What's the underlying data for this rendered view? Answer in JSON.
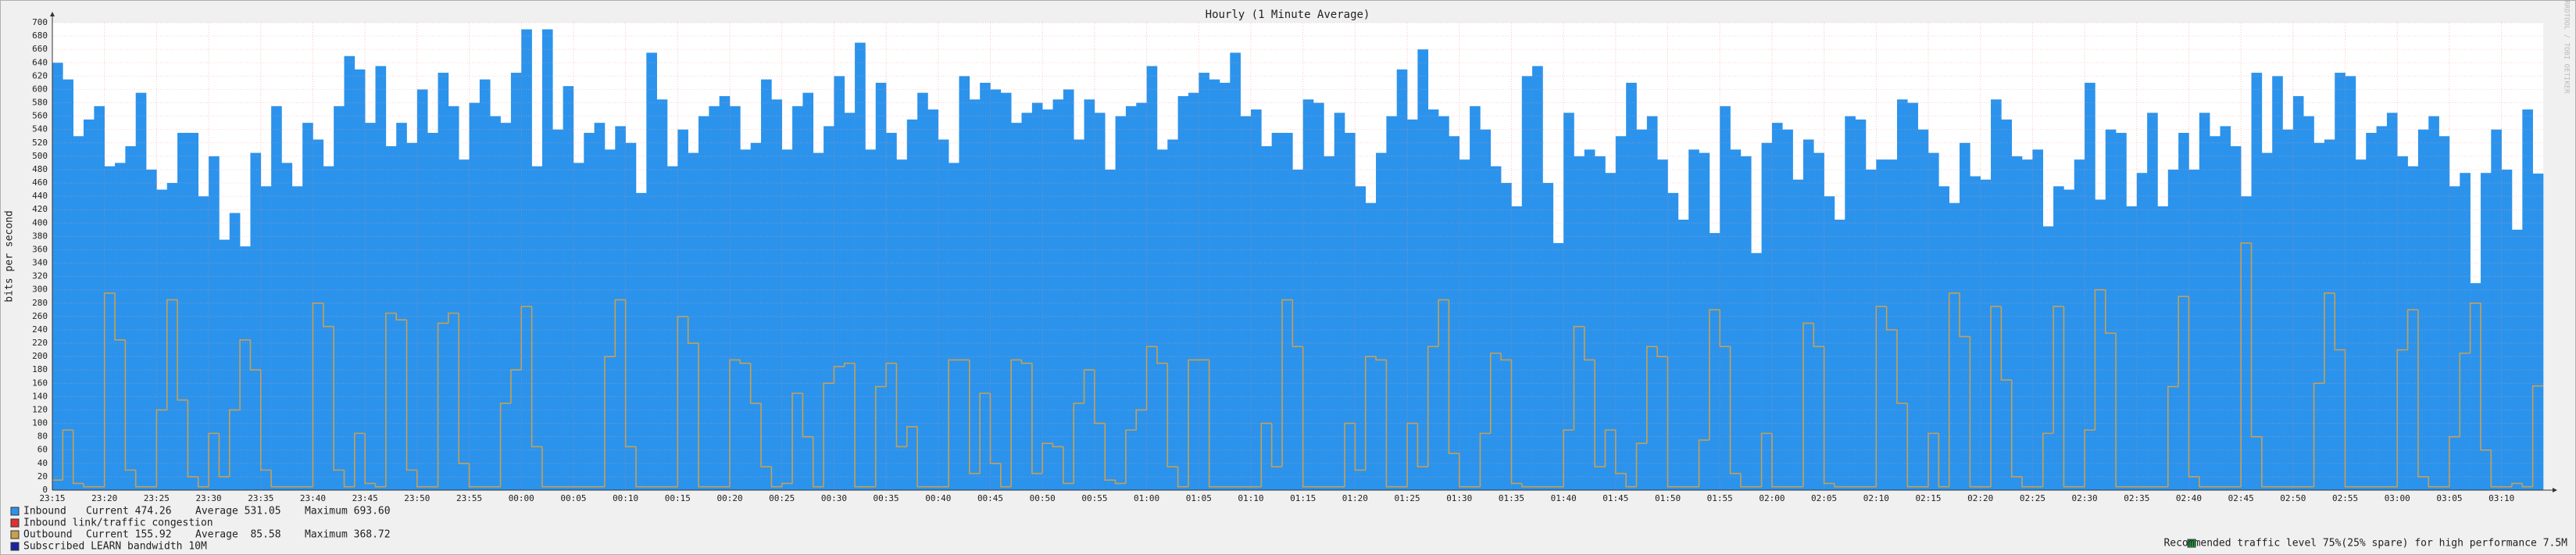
{
  "chart_data": {
    "type": "bar",
    "title": "Hourly (1 Minute Average)",
    "y_label": "bits per second",
    "watermark": "RRDTOOL / TOBI OETIKER",
    "categories": [
      "23:15",
      null,
      null,
      null,
      null,
      "23:20",
      null,
      null,
      null,
      null,
      "23:25",
      null,
      null,
      null,
      null,
      "23:30",
      null,
      null,
      null,
      null,
      "23:35",
      null,
      null,
      null,
      null,
      "23:40",
      null,
      null,
      null,
      null,
      "23:45",
      null,
      null,
      null,
      null,
      "23:50",
      null,
      null,
      null,
      null,
      "23:55",
      null,
      null,
      null,
      null,
      "00:00",
      null,
      null,
      null,
      null,
      "00:05",
      null,
      null,
      null,
      null,
      "00:10",
      null,
      null,
      null,
      null,
      "00:15",
      null,
      null,
      null,
      null,
      "00:20",
      null,
      null,
      null,
      null,
      "00:25",
      null,
      null,
      null,
      null,
      "00:30",
      null,
      null,
      null,
      null,
      "00:35",
      null,
      null,
      null,
      null,
      "00:40",
      null,
      null,
      null,
      null,
      "00:45",
      null,
      null,
      null,
      null,
      "00:50",
      null,
      null,
      null,
      null,
      "00:55",
      null,
      null,
      null,
      null,
      "01:00",
      null,
      null,
      null,
      null,
      "01:05",
      null,
      null,
      null,
      null,
      "01:10",
      null,
      null,
      null,
      null,
      "01:15",
      null,
      null,
      null,
      null,
      "01:20",
      null,
      null,
      null,
      null,
      "01:25",
      null,
      null,
      null,
      null,
      "01:30",
      null,
      null,
      null,
      null,
      "01:35",
      null,
      null,
      null,
      null,
      "01:40",
      null,
      null,
      null,
      null,
      "01:45",
      null,
      null,
      null,
      null,
      "01:50",
      null,
      null,
      null,
      null,
      "01:55",
      null,
      null,
      null,
      null,
      "02:00",
      null,
      null,
      null,
      null,
      "02:05",
      null,
      null,
      null,
      null,
      "02:10",
      null,
      null,
      null,
      null,
      "02:15",
      null,
      null,
      null,
      null,
      "02:20",
      null,
      null,
      null,
      null,
      "02:25",
      null,
      null,
      null,
      null,
      "02:30",
      null,
      null,
      null,
      null,
      "02:35",
      null,
      null,
      null,
      null,
      "02:40",
      null,
      null,
      null,
      null,
      "02:45",
      null,
      null,
      null,
      null,
      "02:50",
      null,
      null,
      null,
      null,
      "02:55",
      null,
      null,
      null,
      null,
      "03:00",
      null,
      null,
      null,
      null,
      "03:05",
      null,
      null,
      null,
      null,
      "03:10",
      null,
      null,
      null
    ],
    "series": [
      {
        "name": "Inbound",
        "color": "#2b93ec",
        "stats": [
          "Current 474.26",
          "Average 531.05",
          "Maximum 693.60"
        ],
        "values": [
          640,
          615,
          530,
          555,
          575,
          485,
          490,
          515,
          595,
          480,
          450,
          460,
          535,
          535,
          440,
          500,
          375,
          415,
          365,
          505,
          455,
          575,
          490,
          455,
          550,
          525,
          485,
          575,
          650,
          630,
          550,
          635,
          515,
          550,
          520,
          600,
          535,
          625,
          575,
          495,
          580,
          615,
          560,
          550,
          625,
          690,
          485,
          690,
          540,
          605,
          490,
          535,
          550,
          510,
          545,
          520,
          445,
          655,
          585,
          485,
          540,
          505,
          560,
          575,
          590,
          575,
          510,
          520,
          615,
          585,
          510,
          575,
          595,
          505,
          545,
          620,
          565,
          670,
          510,
          610,
          535,
          495,
          555,
          595,
          570,
          525,
          490,
          620,
          585,
          610,
          600,
          595,
          550,
          565,
          580,
          570,
          585,
          600,
          525,
          585,
          565,
          480,
          560,
          575,
          580,
          635,
          510,
          525,
          590,
          595,
          625,
          615,
          610,
          655,
          560,
          570,
          515,
          535,
          535,
          480,
          585,
          580,
          500,
          565,
          535,
          455,
          430,
          505,
          560,
          630,
          555,
          660,
          570,
          560,
          530,
          495,
          575,
          540,
          485,
          460,
          425,
          620,
          635,
          460,
          370,
          565,
          500,
          510,
          500,
          475,
          530,
          610,
          540,
          560,
          495,
          445,
          405,
          510,
          505,
          385,
          575,
          510,
          500,
          355,
          520,
          550,
          540,
          465,
          525,
          505,
          440,
          405,
          560,
          555,
          480,
          495,
          495,
          585,
          580,
          540,
          505,
          455,
          430,
          520,
          470,
          465,
          585,
          555,
          500,
          495,
          510,
          395,
          455,
          450,
          495,
          610,
          435,
          540,
          535,
          425,
          475,
          565,
          425,
          480,
          535,
          480,
          565,
          530,
          545,
          515,
          440,
          625,
          505,
          620,
          540,
          590,
          560,
          520,
          525,
          625,
          620,
          495,
          535,
          545,
          565,
          500,
          485,
          540,
          560,
          530,
          455,
          475,
          310,
          475,
          540,
          480,
          390,
          570,
          474
        ]
      },
      {
        "name": "Outbound",
        "color": "#c8a050",
        "stats": [
          "Current 155.92",
          "Average  85.58",
          "Maximum 368.72"
        ],
        "values": [
          15,
          90,
          10,
          5,
          5,
          295,
          225,
          30,
          5,
          5,
          120,
          285,
          135,
          20,
          5,
          85,
          20,
          120,
          225,
          180,
          30,
          5,
          5,
          5,
          5,
          280,
          245,
          30,
          5,
          85,
          10,
          5,
          265,
          255,
          30,
          5,
          5,
          250,
          265,
          40,
          5,
          5,
          5,
          130,
          180,
          275,
          65,
          5,
          5,
          5,
          5,
          5,
          5,
          200,
          285,
          65,
          5,
          5,
          5,
          5,
          260,
          220,
          5,
          5,
          5,
          195,
          190,
          130,
          35,
          5,
          10,
          145,
          80,
          5,
          160,
          185,
          190,
          5,
          5,
          155,
          190,
          65,
          95,
          5,
          5,
          5,
          195,
          195,
          25,
          145,
          40,
          5,
          195,
          190,
          25,
          70,
          65,
          10,
          130,
          180,
          100,
          15,
          10,
          90,
          120,
          215,
          190,
          35,
          5,
          195,
          195,
          5,
          5,
          5,
          5,
          5,
          100,
          35,
          285,
          215,
          5,
          5,
          5,
          5,
          100,
          30,
          200,
          195,
          5,
          5,
          100,
          35,
          215,
          285,
          55,
          5,
          5,
          85,
          205,
          195,
          10,
          5,
          5,
          5,
          5,
          90,
          245,
          195,
          35,
          90,
          25,
          5,
          70,
          215,
          200,
          5,
          5,
          5,
          75,
          270,
          215,
          25,
          5,
          5,
          85,
          5,
          5,
          5,
          250,
          215,
          10,
          5,
          5,
          5,
          5,
          275,
          240,
          130,
          5,
          5,
          85,
          5,
          295,
          230,
          5,
          5,
          275,
          165,
          20,
          5,
          5,
          85,
          275,
          5,
          5,
          90,
          300,
          235,
          5,
          5,
          5,
          5,
          5,
          155,
          290,
          20,
          5,
          5,
          5,
          5,
          370,
          80,
          5,
          5,
          5,
          5,
          5,
          160,
          295,
          210,
          5,
          5,
          5,
          5,
          5,
          210,
          270,
          20,
          5,
          5,
          80,
          205,
          280,
          60,
          5,
          5,
          10,
          5,
          156
        ]
      }
    ],
    "notes": [
      {
        "name": "Inbound link/traffic congestion",
        "color": "#e03030"
      },
      {
        "name": "Subscribed LEARN bandwidth 10M",
        "color": "#2020a0"
      },
      {
        "name": "Recommended traffic level 75%(25% spare) for high performance 7.5M",
        "color": "#20a040"
      }
    ],
    "ylim": [
      0,
      700
    ],
    "yticks": [
      0,
      20,
      40,
      60,
      80,
      100,
      120,
      140,
      160,
      180,
      200,
      220,
      240,
      260,
      280,
      300,
      320,
      340,
      360,
      380,
      400,
      420,
      440,
      460,
      480,
      500,
      520,
      540,
      560,
      580,
      600,
      620,
      640,
      660,
      680,
      700
    ],
    "grid": true
  }
}
